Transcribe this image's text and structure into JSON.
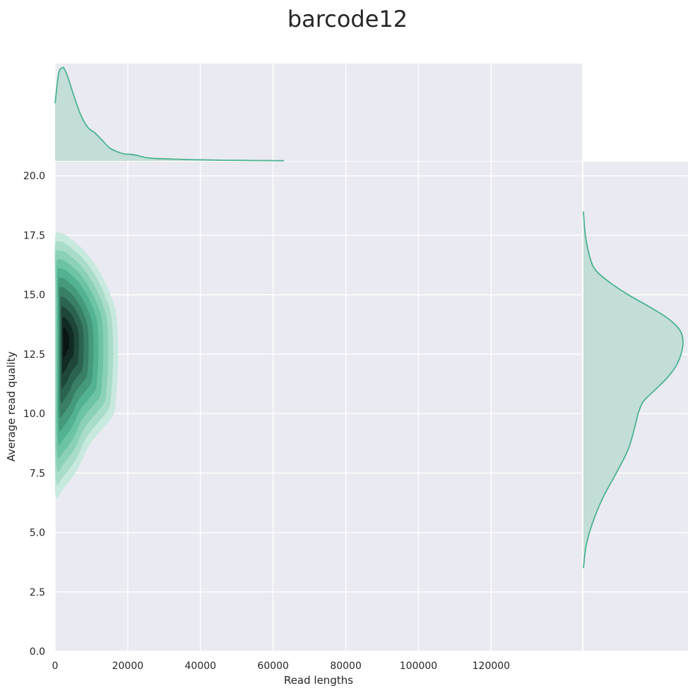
{
  "chart_data": {
    "type": "joint-kde",
    "title": "barcode12",
    "xlabel": "Read lengths",
    "ylabel": "Average read quality",
    "xlim": [
      0,
      145000
    ],
    "ylim": [
      0,
      20.6
    ],
    "x_ticks": [
      0,
      20000,
      40000,
      60000,
      80000,
      100000,
      120000
    ],
    "y_ticks": [
      0.0,
      2.5,
      5.0,
      7.5,
      10.0,
      12.5,
      15.0,
      17.5,
      20.0
    ],
    "grid": true,
    "legend": "none",
    "colors": {
      "background": "#eaeaf2",
      "grid": "#ffffff",
      "line": "#4cb391",
      "marginal_fill": "#c3ddd8",
      "contour_levels": [
        "#c8e9dd",
        "#a9ddca",
        "#8ad1b7",
        "#6cc4a4",
        "#52b291",
        "#459a7b",
        "#387f65",
        "#2b6350",
        "#1e473a",
        "#112b24",
        "#081512"
      ]
    },
    "joint_kde_peak": {
      "x": 2500,
      "y": 13.1
    },
    "marginal_x": {
      "x": [
        0,
        1000,
        2000,
        2500,
        3500,
        5000,
        7000,
        9000,
        11000,
        13000,
        15000,
        17000,
        19000,
        21000,
        23000,
        25000,
        28000,
        32000,
        36000,
        40000,
        45000,
        50000,
        55000,
        60000,
        63000
      ],
      "density": [
        0.62,
        0.94,
        1.0,
        0.99,
        0.9,
        0.72,
        0.5,
        0.36,
        0.3,
        0.22,
        0.14,
        0.1,
        0.075,
        0.07,
        0.055,
        0.035,
        0.025,
        0.02,
        0.015,
        0.012,
        0.008,
        0.006,
        0.004,
        0.003,
        0.002
      ]
    },
    "marginal_y": {
      "y": [
        3.5,
        4.5,
        5.5,
        6.5,
        7.5,
        8.5,
        9.5,
        10.0,
        10.5,
        11.0,
        11.5,
        12.0,
        12.5,
        13.0,
        13.5,
        14.0,
        14.5,
        15.0,
        15.5,
        16.0,
        16.5,
        17.5,
        18.5
      ],
      "density": [
        0.0,
        0.03,
        0.1,
        0.2,
        0.33,
        0.45,
        0.52,
        0.55,
        0.6,
        0.72,
        0.84,
        0.93,
        0.98,
        1.0,
        0.97,
        0.85,
        0.66,
        0.45,
        0.27,
        0.13,
        0.07,
        0.02,
        0.0
      ]
    }
  }
}
